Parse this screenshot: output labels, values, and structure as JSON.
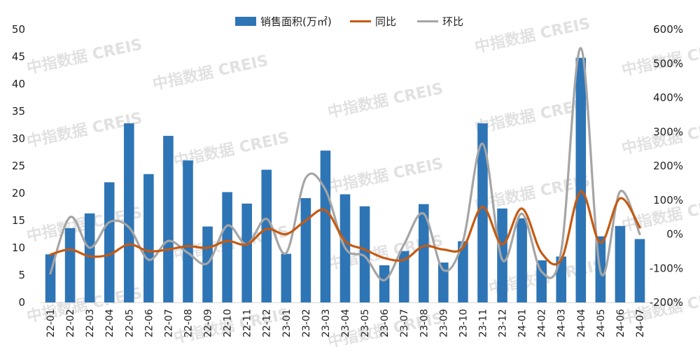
{
  "chart_data": {
    "type": "bar+line",
    "title": "",
    "categories": [
      "22-01",
      "22-02",
      "22-03",
      "22-04",
      "22-05",
      "22-06",
      "22-07",
      "22-08",
      "22-09",
      "22-10",
      "22-11",
      "22-12",
      "23-01",
      "23-02",
      "23-03",
      "23-04",
      "23-05",
      "23-06",
      "23-07",
      "23-08",
      "23-09",
      "23-10",
      "23-11",
      "23-12",
      "24-01",
      "24-02",
      "24-03",
      "24-04",
      "24-05",
      "24-06",
      "24-07"
    ],
    "series": [
      {
        "name": "销售面积(万㎡)",
        "type": "bar",
        "axis": "left",
        "color": "#2E75B6",
        "values": [
          8.8,
          13.6,
          16.3,
          22.0,
          32.8,
          23.5,
          30.5,
          26.0,
          13.9,
          20.2,
          18.1,
          24.3,
          8.9,
          19.1,
          27.8,
          19.8,
          17.6,
          6.8,
          9.4,
          18.0,
          7.3,
          11.2,
          32.8,
          17.2,
          15.4,
          7.7,
          8.4,
          44.8,
          12.1,
          14.0,
          11.6
        ]
      },
      {
        "name": "同比",
        "type": "line",
        "axis": "right",
        "color": "#C55A11",
        "values": [
          -60,
          -45,
          -65,
          -60,
          -30,
          -50,
          -45,
          -35,
          -40,
          -20,
          -30,
          15,
          0,
          40,
          70,
          -20,
          -45,
          -70,
          -75,
          -35,
          -45,
          -40,
          80,
          -30,
          75,
          -55,
          -75,
          125,
          -25,
          105,
          20
        ]
      },
      {
        "name": "环比",
        "type": "line",
        "axis": "right",
        "color": "#A5A5A5",
        "values": [
          -115,
          50,
          -40,
          35,
          20,
          -75,
          -20,
          -55,
          -85,
          25,
          -30,
          45,
          -55,
          165,
          130,
          -40,
          -65,
          -135,
          -30,
          60,
          -105,
          -20,
          265,
          -75,
          60,
          -110,
          -50,
          545,
          -110,
          125,
          0
        ]
      }
    ],
    "yleft": {
      "min": 0,
      "max": 50,
      "step": 5,
      "ticks": [
        "0",
        "5",
        "10",
        "15",
        "20",
        "25",
        "30",
        "35",
        "40",
        "45",
        "50"
      ]
    },
    "yright": {
      "min": -200,
      "max": 600,
      "step": 100,
      "ticks": [
        "-200%",
        "-100%",
        "0%",
        "100%",
        "200%",
        "300%",
        "400%",
        "500%",
        "600%"
      ]
    },
    "legend": {
      "position": "top-center",
      "labels": [
        "销售面积(万㎡)",
        "同比",
        "环比"
      ]
    },
    "grid": false,
    "watermark": "中指数据 CREIS"
  }
}
